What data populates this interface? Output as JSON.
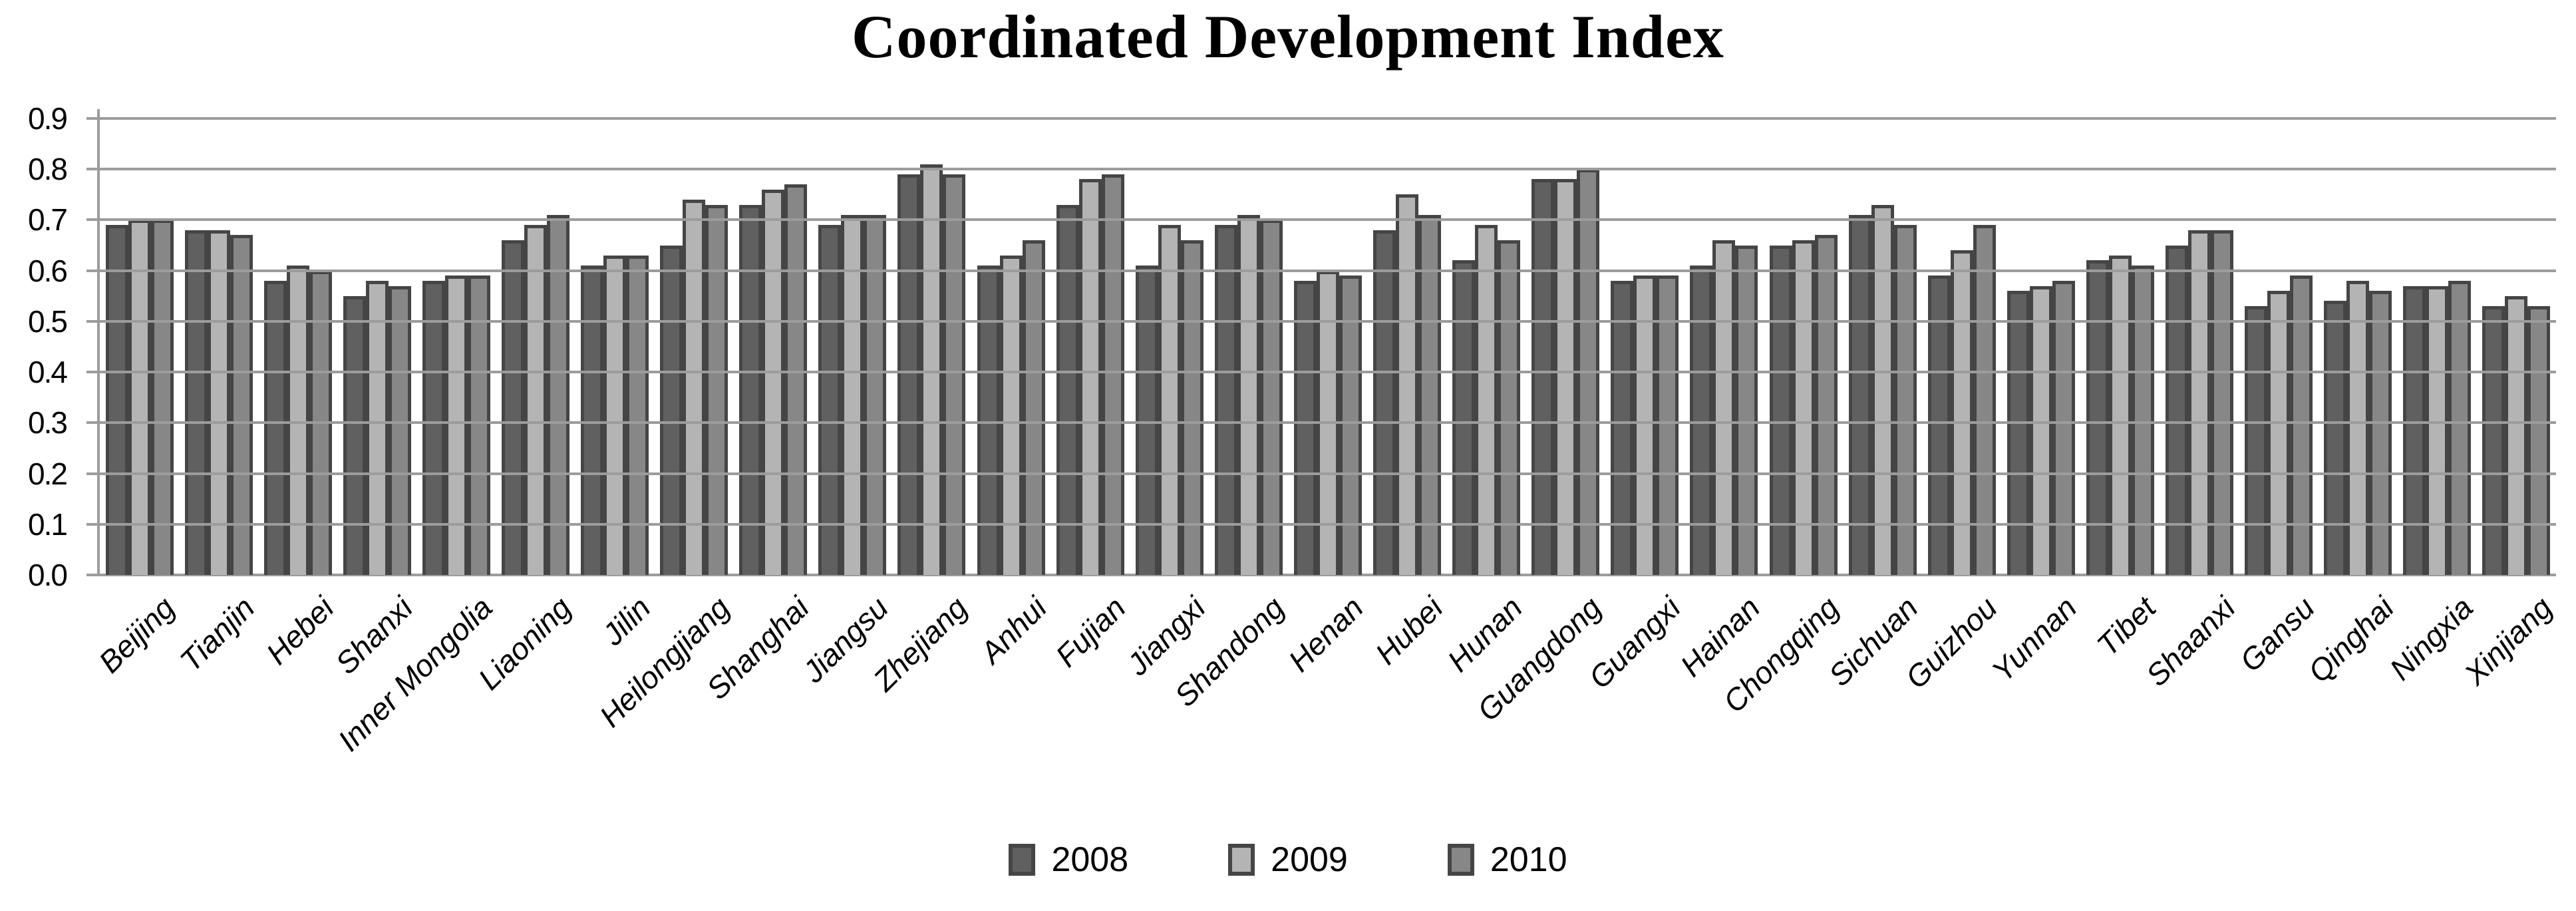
{
  "title": "Coordinated Development Index",
  "chart_data": {
    "type": "bar",
    "title": "Coordinated Development Index",
    "xlabel": "",
    "ylabel": "",
    "ylim": [
      0,
      0.9
    ],
    "y_ticks": [
      "0.9",
      "0.8",
      "0.7",
      "0.6",
      "0.5",
      "0.4",
      "0.3",
      "0.2",
      "0.1",
      "0.0"
    ],
    "grid": true,
    "legend_position": "bottom",
    "gridline_color": "#9c9c9c",
    "bar_border_color": "#454545",
    "categories": [
      "Beijing",
      "Tianjin",
      "Hebei",
      "Shanxi",
      "Inner Mongolia",
      "Liaoning",
      "Jilin",
      "Heilongjiang",
      "Shanghai",
      "Jiangsu",
      "Zhejiang",
      "Anhui",
      "Fujian",
      "Jiangxi",
      "Shandong",
      "Henan",
      "Hubei",
      "Hunan",
      "Guangdong",
      "Guangxi",
      "Hainan",
      "Chongqing",
      "Sichuan",
      "Guizhou",
      "Yunnan",
      "Tibet",
      "Shaanxi",
      "Gansu",
      "Qinghai",
      "Ningxia",
      "Xinjiang"
    ],
    "series": [
      {
        "name": "2008",
        "color": "#606060",
        "values": [
          0.69,
          0.68,
          0.58,
          0.55,
          0.58,
          0.66,
          0.61,
          0.65,
          0.73,
          0.69,
          0.79,
          0.61,
          0.73,
          0.61,
          0.69,
          0.58,
          0.68,
          0.62,
          0.78,
          0.58,
          0.61,
          0.65,
          0.71,
          0.59,
          0.56,
          0.62,
          0.65,
          0.53,
          0.54,
          0.57,
          0.53
        ]
      },
      {
        "name": "2009",
        "color": "#b4b4b4",
        "values": [
          0.7,
          0.68,
          0.61,
          0.58,
          0.59,
          0.69,
          0.63,
          0.74,
          0.76,
          0.71,
          0.81,
          0.63,
          0.78,
          0.69,
          0.71,
          0.6,
          0.75,
          0.69,
          0.78,
          0.59,
          0.66,
          0.66,
          0.73,
          0.64,
          0.57,
          0.63,
          0.68,
          0.56,
          0.58,
          0.57,
          0.55
        ]
      },
      {
        "name": "2010",
        "color": "#878787",
        "values": [
          0.7,
          0.67,
          0.6,
          0.57,
          0.59,
          0.71,
          0.63,
          0.73,
          0.77,
          0.71,
          0.79,
          0.66,
          0.79,
          0.66,
          0.7,
          0.59,
          0.71,
          0.66,
          0.8,
          0.59,
          0.65,
          0.67,
          0.69,
          0.69,
          0.58,
          0.61,
          0.68,
          0.59,
          0.56,
          0.58,
          0.53
        ]
      }
    ]
  }
}
